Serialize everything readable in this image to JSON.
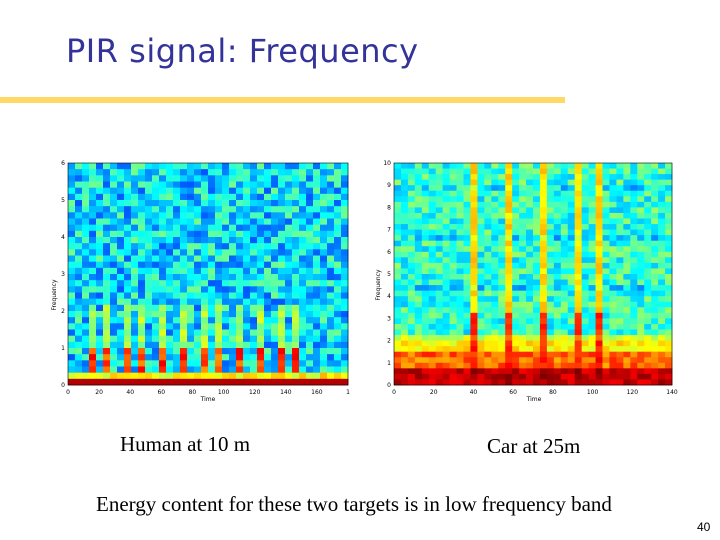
{
  "slide": {
    "title": "PIR signal: Frequency",
    "page_number": "40",
    "footnote": "Energy content for these two targets is in low frequency band"
  },
  "colors": {
    "title": "#333399",
    "rule": "#ffd966"
  },
  "panels": [
    {
      "caption": "Human at 10 m",
      "xlabel": "Time",
      "ylabel": "Frequency",
      "x_ticks": [
        "0",
        "20",
        "40",
        "60",
        "80",
        "100",
        "120",
        "140",
        "160",
        "1"
      ],
      "y_ticks": [
        "0",
        "1",
        "2",
        "3",
        "4",
        "5",
        "6"
      ],
      "colormap": "jet",
      "energy_band": "low frequency"
    },
    {
      "caption": "Car at 25m",
      "xlabel": "Time",
      "ylabel": "Frequency",
      "x_ticks": [
        "0",
        "20",
        "40",
        "60",
        "80",
        "100",
        "120",
        "140"
      ],
      "y_ticks": [
        "0",
        "1",
        "2",
        "3",
        "4",
        "5",
        "6",
        "7",
        "8",
        "9",
        "10"
      ],
      "colormap": "jet",
      "energy_band": "low frequency"
    }
  ]
}
